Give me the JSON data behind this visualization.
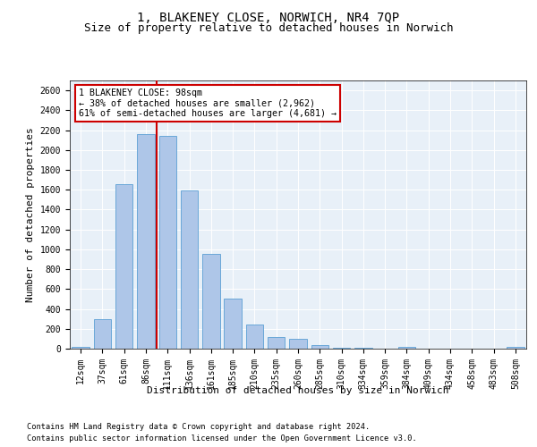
{
  "title": "1, BLAKENEY CLOSE, NORWICH, NR4 7QP",
  "subtitle": "Size of property relative to detached houses in Norwich",
  "xlabel": "Distribution of detached houses by size in Norwich",
  "ylabel": "Number of detached properties",
  "categories": [
    "12sqm",
    "37sqm",
    "61sqm",
    "86sqm",
    "111sqm",
    "136sqm",
    "161sqm",
    "185sqm",
    "210sqm",
    "235sqm",
    "260sqm",
    "285sqm",
    "310sqm",
    "334sqm",
    "359sqm",
    "384sqm",
    "409sqm",
    "434sqm",
    "458sqm",
    "483sqm",
    "508sqm"
  ],
  "values": [
    20,
    300,
    1660,
    2160,
    2140,
    1595,
    950,
    505,
    245,
    120,
    100,
    40,
    10,
    5,
    2,
    20,
    2,
    2,
    0,
    0,
    20
  ],
  "bar_color": "#aec6e8",
  "bar_edge_color": "#5a9fd4",
  "vline_x_index": 3.5,
  "vline_color": "#cc0000",
  "annotation_text": "1 BLAKENEY CLOSE: 98sqm\n← 38% of detached houses are smaller (2,962)\n61% of semi-detached houses are larger (4,681) →",
  "annotation_box_color": "#ffffff",
  "annotation_box_edge": "#cc0000",
  "footnote1": "Contains HM Land Registry data © Crown copyright and database right 2024.",
  "footnote2": "Contains public sector information licensed under the Open Government Licence v3.0.",
  "ylim": [
    0,
    2700
  ],
  "yticks": [
    0,
    200,
    400,
    600,
    800,
    1000,
    1200,
    1400,
    1600,
    1800,
    2000,
    2200,
    2400,
    2600
  ],
  "bg_color": "#e8f0f8",
  "fig_bg_color": "#ffffff",
  "title_fontsize": 10,
  "subtitle_fontsize": 9,
  "axis_label_fontsize": 8,
  "tick_fontsize": 7
}
